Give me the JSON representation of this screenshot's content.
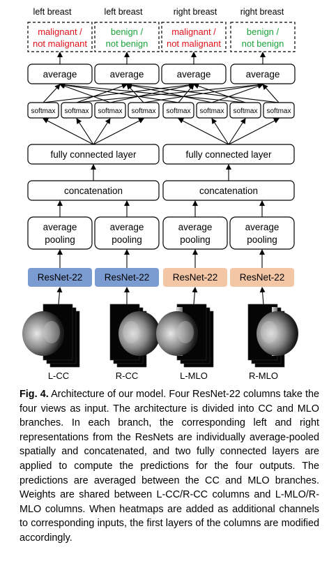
{
  "diagram": {
    "outputs": [
      {
        "side": "left breast",
        "line1": "malignant /",
        "line2": "not malignant",
        "color": "#e0101a"
      },
      {
        "side": "left breast",
        "line1": "benign /",
        "line2": "not benign",
        "color": "#1aa33a"
      },
      {
        "side": "right breast",
        "line1": "malignant /",
        "line2": "not malignant",
        "color": "#e0101a"
      },
      {
        "side": "right breast",
        "line1": "benign /",
        "line2": "not benign",
        "color": "#1aa33a"
      }
    ],
    "average_label": "average",
    "softmax_label": "softmax",
    "fc_label": "fully connected layer",
    "concat_label": "concatenation",
    "pool_line1": "average",
    "pool_line2": "pooling",
    "resnet_label": "ResNet-22",
    "resnet_colors": [
      "#7b9cd1",
      "#7b9cd1",
      "#f3c6a6",
      "#f3c6a6"
    ],
    "views": [
      "L-CC",
      "R-CC",
      "L-MLO",
      "R-MLO"
    ]
  },
  "caption": {
    "fig_label": "Fig. 4.",
    "text": "Architecture of our model. Four ResNet-22 columns take the four views as input. The architecture is divided into CC and MLO branches. In each branch, the corresponding left and right representations from the ResNets are individually average-pooled spatially and concatenated, and two fully connected layers are applied to compute the predictions for the four outputs. The predictions are averaged between the CC and MLO branches. Weights are shared between L-CC/R-CC columns and L-MLO/R-MLO columns. When heatmaps are added as additional channels to corresponding inputs, the first layers of the columns are modified accordingly."
  }
}
